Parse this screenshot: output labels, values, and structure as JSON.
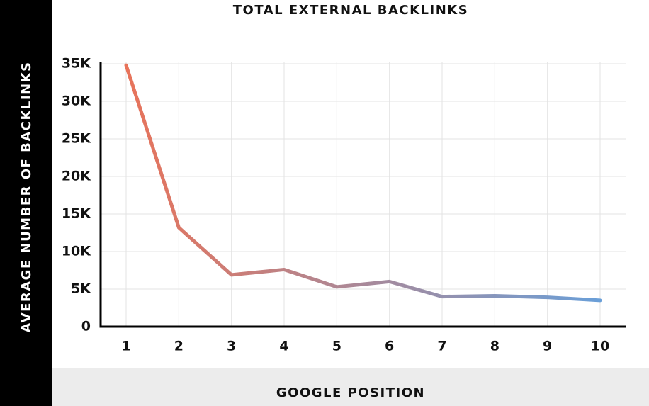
{
  "chart_data": {
    "type": "line",
    "title": "TOTAL EXTERNAL BACKLINKS",
    "x_label": "GOOGLE POSITION",
    "y_label": "AVERAGE NUMBER OF BACKLINKS",
    "categories": [
      "1",
      "2",
      "3",
      "4",
      "5",
      "6",
      "7",
      "8",
      "9",
      "10"
    ],
    "series": [
      {
        "values": [
          34800,
          13200,
          6900,
          7600,
          5300,
          6000,
          4000,
          4100,
          3900,
          3500
        ]
      }
    ],
    "line_gradient": [
      "#e8735a",
      "#6a9fd8"
    ],
    "ylim": [
      0,
      35000
    ],
    "yticks": [
      0,
      {
        "value": 5000,
        "label": "5K"
      },
      {
        "value": 10000,
        "label": "10K"
      },
      {
        "value": 15000,
        "label": "15K"
      },
      {
        "value": 20000,
        "label": "20K"
      },
      {
        "value": 25000,
        "label": "25K"
      },
      {
        "value": 30000,
        "label": "30K"
      },
      {
        "value": 35000,
        "label": "35K"
      }
    ],
    "grid": true
  }
}
